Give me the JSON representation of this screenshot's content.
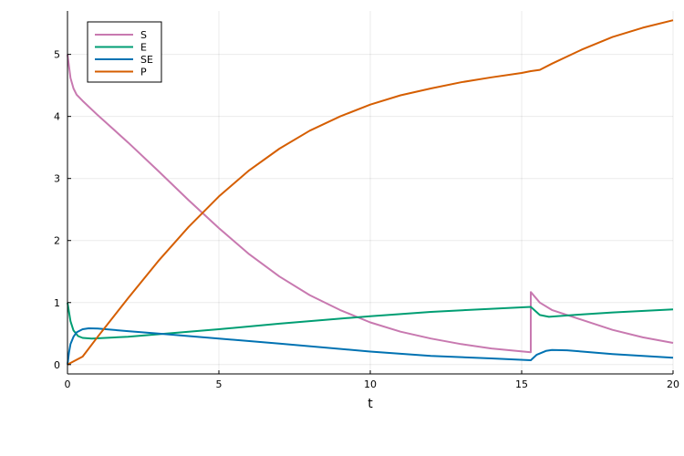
{
  "chart_data": {
    "type": "line",
    "title": "",
    "xlabel": "t",
    "ylabel": "",
    "xlim": [
      0,
      20
    ],
    "ylim": [
      -0.15,
      5.7
    ],
    "xticks": [
      0,
      5,
      10,
      15,
      20
    ],
    "yticks": [
      0,
      1,
      2,
      3,
      4,
      5
    ],
    "grid": true,
    "legend_position": "top-left",
    "series": [
      {
        "name": "S",
        "color": "#c879b0",
        "points": [
          [
            0,
            5.0
          ],
          [
            0.1,
            4.62
          ],
          [
            0.2,
            4.45
          ],
          [
            0.3,
            4.35
          ],
          [
            0.5,
            4.25
          ],
          [
            1,
            4.02
          ],
          [
            2,
            3.58
          ],
          [
            3,
            3.12
          ],
          [
            4,
            2.65
          ],
          [
            5,
            2.2
          ],
          [
            6,
            1.78
          ],
          [
            7,
            1.42
          ],
          [
            8,
            1.12
          ],
          [
            9,
            0.88
          ],
          [
            10,
            0.68
          ],
          [
            11,
            0.53
          ],
          [
            12,
            0.42
          ],
          [
            13,
            0.33
          ],
          [
            14,
            0.26
          ],
          [
            15.3,
            0.2
          ],
          [
            15.3,
            1.17
          ],
          [
            15.6,
            1.0
          ],
          [
            16,
            0.88
          ],
          [
            17,
            0.72
          ],
          [
            18,
            0.56
          ],
          [
            19,
            0.44
          ],
          [
            20,
            0.35
          ]
        ]
      },
      {
        "name": "E",
        "color": "#009e73",
        "points": [
          [
            0,
            1.0
          ],
          [
            0.1,
            0.7
          ],
          [
            0.2,
            0.55
          ],
          [
            0.35,
            0.46
          ],
          [
            0.5,
            0.43
          ],
          [
            0.8,
            0.42
          ],
          [
            2,
            0.45
          ],
          [
            3,
            0.49
          ],
          [
            5,
            0.57
          ],
          [
            7,
            0.66
          ],
          [
            10,
            0.78
          ],
          [
            12,
            0.85
          ],
          [
            14,
            0.9
          ],
          [
            15.3,
            0.93
          ],
          [
            15.6,
            0.8
          ],
          [
            15.9,
            0.77
          ],
          [
            17,
            0.81
          ],
          [
            18,
            0.84
          ],
          [
            20,
            0.89
          ]
        ]
      },
      {
        "name": "SE",
        "color": "#0072b2",
        "points": [
          [
            0,
            0.0
          ],
          [
            0.05,
            0.2
          ],
          [
            0.1,
            0.33
          ],
          [
            0.2,
            0.45
          ],
          [
            0.3,
            0.52
          ],
          [
            0.5,
            0.57
          ],
          [
            0.7,
            0.585
          ],
          [
            1,
            0.58
          ],
          [
            2,
            0.54
          ],
          [
            3,
            0.5
          ],
          [
            5,
            0.42
          ],
          [
            7,
            0.34
          ],
          [
            10,
            0.21
          ],
          [
            12,
            0.14
          ],
          [
            14,
            0.1
          ],
          [
            15.3,
            0.07
          ],
          [
            15.5,
            0.16
          ],
          [
            15.8,
            0.22
          ],
          [
            16,
            0.235
          ],
          [
            16.5,
            0.23
          ],
          [
            17,
            0.21
          ],
          [
            18,
            0.17
          ],
          [
            19,
            0.14
          ],
          [
            20,
            0.11
          ]
        ]
      },
      {
        "name": "P",
        "color": "#d55e00",
        "points": [
          [
            0,
            0.0
          ],
          [
            0.5,
            0.13
          ],
          [
            1,
            0.45
          ],
          [
            2,
            1.07
          ],
          [
            3,
            1.67
          ],
          [
            4,
            2.22
          ],
          [
            5,
            2.71
          ],
          [
            6,
            3.13
          ],
          [
            7,
            3.48
          ],
          [
            8,
            3.77
          ],
          [
            9,
            4.0
          ],
          [
            10,
            4.19
          ],
          [
            11,
            4.34
          ],
          [
            12,
            4.45
          ],
          [
            13,
            4.55
          ],
          [
            14,
            4.63
          ],
          [
            15,
            4.7
          ],
          [
            15.3,
            4.73
          ],
          [
            15.6,
            4.75
          ],
          [
            16,
            4.85
          ],
          [
            17,
            5.08
          ],
          [
            18,
            5.28
          ],
          [
            19,
            5.43
          ],
          [
            20,
            5.55
          ]
        ]
      }
    ]
  }
}
